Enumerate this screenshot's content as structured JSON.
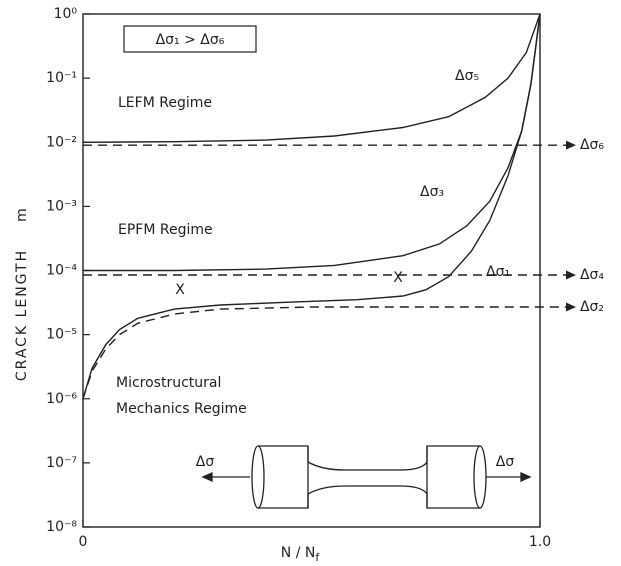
{
  "chart_data": {
    "type": "line",
    "log_y": true,
    "xlabel": "N / N",
    "xlabel_sub": "f",
    "ylabel": "CRACK LENGTH",
    "yunit": "m",
    "xlim": [
      0,
      1
    ],
    "ylim": [
      1e-08,
      1
    ],
    "xticks": [
      0,
      {
        "value": 1,
        "label": "1.0"
      }
    ],
    "yticks": [
      {
        "value": 1,
        "label": "10⁰"
      },
      {
        "value": 0.1,
        "label": "10⁻¹"
      },
      {
        "value": 0.01,
        "label": "10⁻²"
      },
      {
        "value": 0.001,
        "label": "10⁻³"
      },
      {
        "value": 0.0001,
        "label": "10⁻⁴"
      },
      {
        "value": 1e-05,
        "label": "10⁻⁵"
      },
      {
        "value": 1e-06,
        "label": "10⁻⁶"
      },
      {
        "value": 1e-07,
        "label": "10⁻⁷"
      },
      {
        "value": 1e-08,
        "label": "10⁻⁸"
      }
    ],
    "annotations": [
      "Δσ₁ > Δσ₆",
      "LEFM Regime",
      "EPFM Regime",
      "Microstructural",
      "Mechanics Regime",
      "X",
      "X",
      "Δσ",
      "Δσ"
    ],
    "series": [
      {
        "name": "Δσ₅",
        "color": "#222",
        "dashed": false,
        "x": [
          0,
          0.2,
          0.4,
          0.55,
          0.7,
          0.8,
          0.88,
          0.93,
          0.97,
          1.0
        ],
        "values": [
          0.01,
          0.0102,
          0.0108,
          0.0125,
          0.017,
          0.025,
          0.05,
          0.1,
          0.25,
          1
        ]
      },
      {
        "name": "Δσ₃",
        "color": "#222",
        "dashed": false,
        "x": [
          0,
          0.2,
          0.4,
          0.55,
          0.7,
          0.78,
          0.84,
          0.89,
          0.93,
          0.96,
          0.98,
          1.0
        ],
        "values": [
          0.0001,
          0.0001,
          0.000105,
          0.00012,
          0.00017,
          0.00026,
          0.0005,
          0.0012,
          0.004,
          0.015,
          0.08,
          1
        ]
      },
      {
        "name": "Δσ₁",
        "color": "#222",
        "dashed": false,
        "x": [
          0,
          0.02,
          0.05,
          0.08,
          0.12,
          0.2,
          0.3,
          0.45,
          0.6,
          0.7,
          0.75,
          0.8,
          0.85,
          0.89,
          0.93,
          0.96,
          0.98,
          1.0
        ],
        "values": [
          1e-06,
          3e-06,
          7e-06,
          1.2e-05,
          1.8e-05,
          2.5e-05,
          2.9e-05,
          3.2e-05,
          3.5e-05,
          4e-05,
          5e-05,
          8e-05,
          0.0002,
          0.0006,
          0.003,
          0.015,
          0.08,
          1
        ]
      },
      {
        "name": "Δσ₆",
        "color": "#222",
        "dashed": true,
        "x": [
          0,
          1.07
        ],
        "values": [
          0.009,
          0.009
        ]
      },
      {
        "name": "Δσ₄",
        "color": "#222",
        "dashed": true,
        "x": [
          0,
          1.07
        ],
        "values": [
          8.5e-05,
          8.5e-05
        ]
      },
      {
        "name": "Δσ₂",
        "color": "#222",
        "dashed": true,
        "x": [
          0,
          0.02,
          0.05,
          0.08,
          0.12,
          0.2,
          0.3,
          0.5,
          1.07
        ],
        "values": [
          1e-06,
          2.7e-06,
          6e-06,
          1e-05,
          1.5e-05,
          2.1e-05,
          2.5e-05,
          2.7e-05,
          2.7e-05
        ]
      }
    ]
  }
}
